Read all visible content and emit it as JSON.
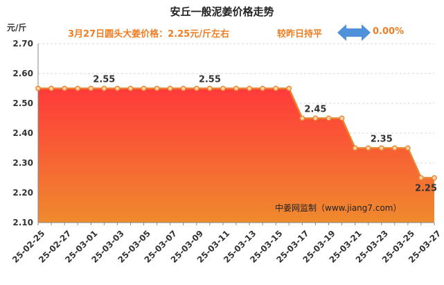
{
  "title": "安丘一般泥姜价格走势",
  "subtitle": "3月27日圆头大姜价格：2.25元/斤左右",
  "comparison": "较昨日持平",
  "change": "0.00%",
  "arrow_icon": "double-arrow-icon",
  "colors": {
    "line": "#e9832f",
    "fill_top": "#ff3a3a",
    "fill_bottom": "#ef8a2e",
    "arrow": "#4f92d9"
  },
  "chart_data": {
    "type": "area",
    "ylabel": "元/斤",
    "ylim": [
      2.1,
      2.7
    ],
    "yticks": [
      "2.10",
      "2.20",
      "2.30",
      "2.40",
      "2.50",
      "2.60",
      "2.70"
    ],
    "grid": true,
    "x": [
      "25-02-25",
      "25-02-26",
      "25-02-27",
      "25-02-28",
      "25-03-01",
      "25-03-02",
      "25-03-03",
      "25-03-04",
      "25-03-05",
      "25-03-06",
      "25-03-07",
      "25-03-08",
      "25-03-09",
      "25-03-10",
      "25-03-11",
      "25-03-12",
      "25-03-13",
      "25-03-14",
      "25-03-15",
      "25-03-16",
      "25-03-17",
      "25-03-18",
      "25-03-19",
      "25-03-20",
      "25-03-21",
      "25-03-22",
      "25-03-23",
      "25-03-24",
      "25-03-25",
      "25-03-26",
      "25-03-27"
    ],
    "xticks": [
      "25-02-25",
      "25-02-27",
      "25-03-01",
      "25-03-03",
      "25-03-05",
      "25-03-07",
      "25-03-09",
      "25-03-11",
      "25-03-13",
      "25-03-15",
      "25-03-17",
      "25-03-19",
      "25-03-21",
      "25-03-23",
      "25-03-25",
      "25-03-27"
    ],
    "values": [
      2.55,
      2.55,
      2.55,
      2.55,
      2.55,
      2.55,
      2.55,
      2.55,
      2.55,
      2.55,
      2.55,
      2.55,
      2.55,
      2.55,
      2.55,
      2.55,
      2.55,
      2.55,
      2.55,
      2.55,
      2.45,
      2.45,
      2.45,
      2.45,
      2.35,
      2.35,
      2.35,
      2.35,
      2.35,
      2.25,
      2.25
    ],
    "data_labels": [
      {
        "index": 5,
        "text": "2.55"
      },
      {
        "index": 13,
        "text": "2.55"
      },
      {
        "index": 21,
        "text": "2.45"
      },
      {
        "index": 26,
        "text": "2.35"
      },
      {
        "index": 30,
        "text": "2.25"
      }
    ],
    "annotation": "中姜网监制（www.jiang7.com）"
  }
}
